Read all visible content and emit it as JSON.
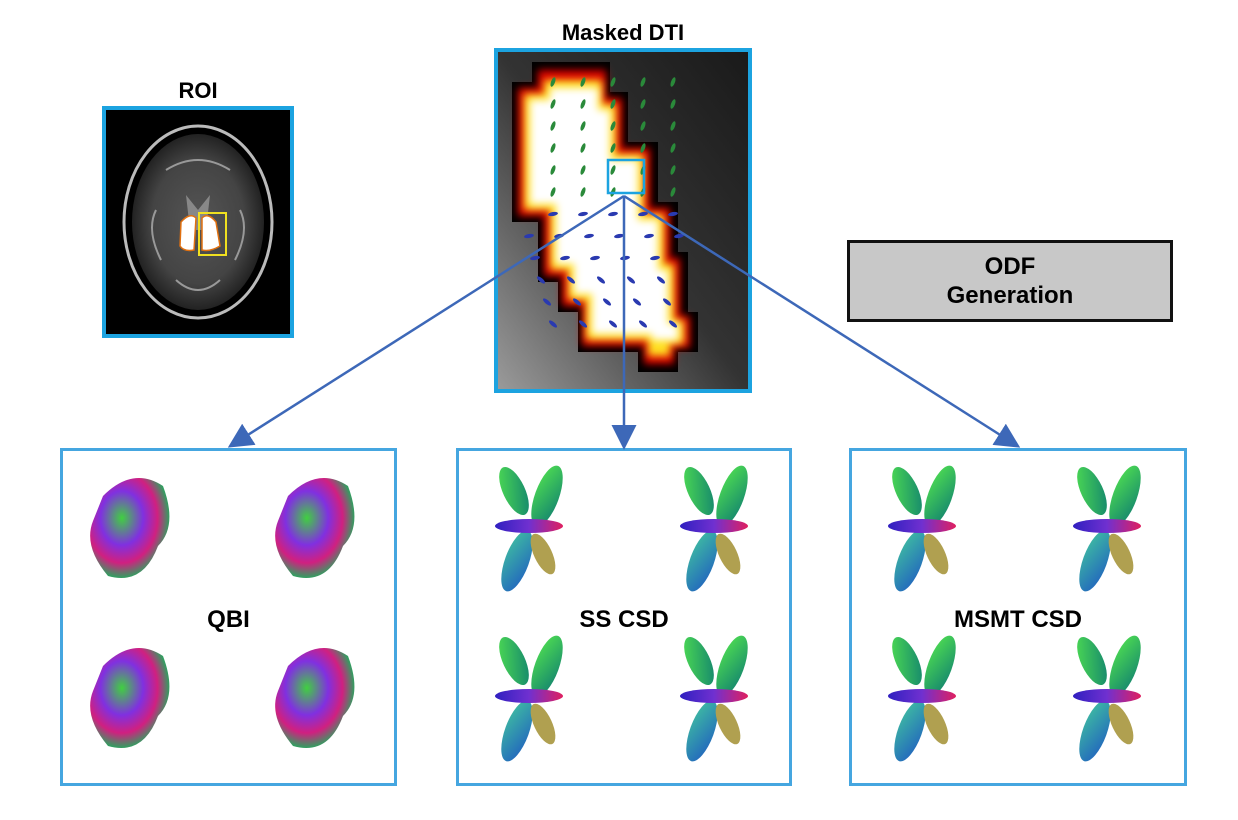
{
  "roi": {
    "title": "ROI"
  },
  "dti": {
    "title": "Masked DTI"
  },
  "odf_generation": {
    "line1": "ODF",
    "line2": "Generation"
  },
  "methods": [
    {
      "label": "QBI"
    },
    {
      "label": "SS CSD"
    },
    {
      "label": "MSMT CSD"
    }
  ],
  "colors": {
    "panel_border": "#1ca3e0",
    "arrow": "#3d68b8",
    "roi_box": "#f0e020",
    "odf_box_fill": "#c8c8c8"
  }
}
